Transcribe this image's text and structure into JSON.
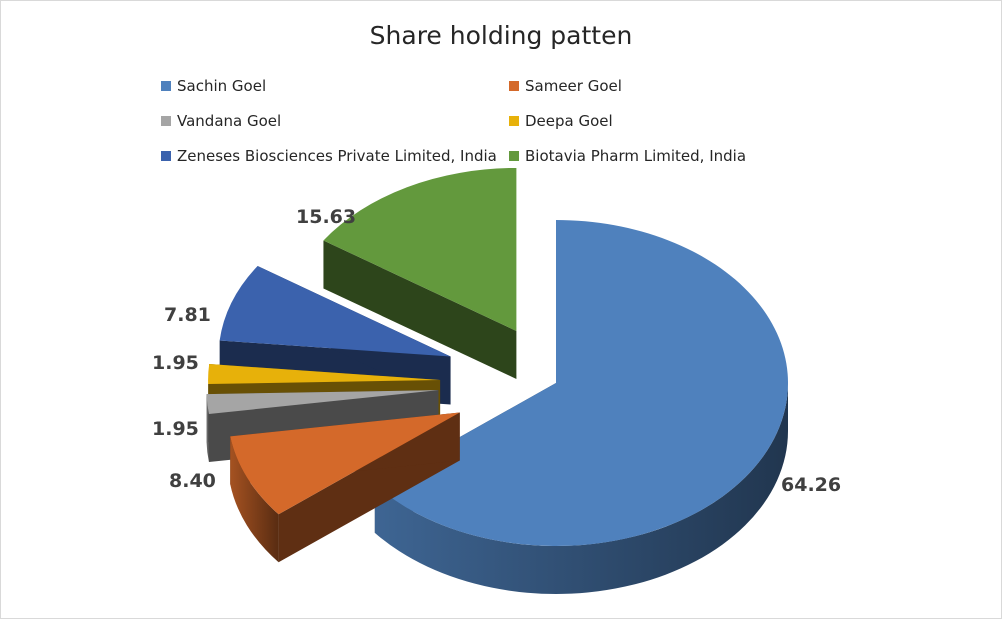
{
  "chart_data": {
    "type": "pie",
    "title": "Share holding patten",
    "legend_position": "top",
    "slices": [
      {
        "label": "Sachin Goel",
        "value": 64.26,
        "value_text": "64.26",
        "color": "#4f81bd"
      },
      {
        "label": "Sameer Goel",
        "value": 8.4,
        "value_text": "8.40",
        "color": "#d4692a"
      },
      {
        "label": "Vandana Goel",
        "value": 1.95,
        "value_text": "1.95",
        "color": "#a5a5a5"
      },
      {
        "label": "Deepa Goel",
        "value": 1.95,
        "value_text": "1.95",
        "color": "#e7b10a"
      },
      {
        "label": "Zeneses Biosciences Private Limited, India",
        "value": 7.81,
        "value_text": "7.81",
        "color": "#3b62ad"
      },
      {
        "label": "Biotavia Pharm Limited, India",
        "value": 15.63,
        "value_text": "15.63",
        "color": "#63993d"
      }
    ]
  }
}
